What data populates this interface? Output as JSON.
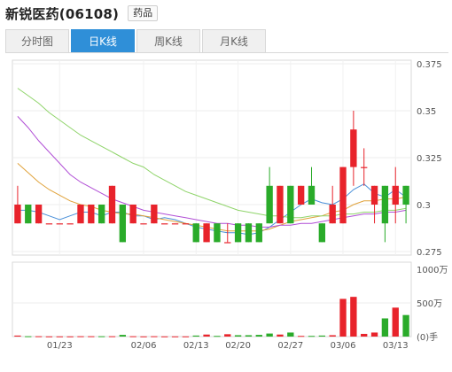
{
  "header": {
    "title": "新锐医药(06108)",
    "tag": "药品"
  },
  "tabs": [
    {
      "label": "分时图",
      "active": false
    },
    {
      "label": "日K线",
      "active": true
    },
    {
      "label": "周K线",
      "active": false
    },
    {
      "label": "月K线",
      "active": false
    }
  ],
  "colors": {
    "up": "#e8232b",
    "down": "#2aab2a",
    "accent": "#2f8fd8",
    "ma5": "#4a90d9",
    "ma10": "#e0a23a",
    "ma20": "#b14fd6",
    "ma30": "#8fd46a"
  },
  "chart_data": {
    "type": "candlestick",
    "price_axis": {
      "ticks": [
        "0.375",
        "0.35",
        "0.325",
        "0.3",
        "0.275"
      ],
      "ylim": [
        0.275,
        0.375
      ]
    },
    "volume_axis": {
      "ticks": [
        "1000万",
        "500万",
        "(0)手"
      ],
      "ylim": [
        0,
        1000
      ]
    },
    "x_labels": [
      {
        "label": "01/23",
        "index": 4
      },
      {
        "label": "02/06",
        "index": 12
      },
      {
        "label": "02/13",
        "index": 17
      },
      {
        "label": "02/20",
        "index": 21
      },
      {
        "label": "02/27",
        "index": 26
      },
      {
        "label": "03/06",
        "index": 31
      },
      {
        "label": "03/13",
        "index": 36
      }
    ],
    "candles": [
      {
        "open": 0.29,
        "close": 0.3,
        "high": 0.31,
        "low": 0.29,
        "volume": 15
      },
      {
        "open": 0.3,
        "close": 0.29,
        "high": 0.3,
        "low": 0.29,
        "volume": 5
      },
      {
        "open": 0.29,
        "close": 0.3,
        "high": 0.3,
        "low": 0.29,
        "volume": 5
      },
      {
        "open": 0.29,
        "close": 0.29,
        "high": 0.29,
        "low": 0.29,
        "volume": 3
      },
      {
        "open": 0.29,
        "close": 0.29,
        "high": 0.29,
        "low": 0.29,
        "volume": 3
      },
      {
        "open": 0.29,
        "close": 0.29,
        "high": 0.29,
        "low": 0.29,
        "volume": 3
      },
      {
        "open": 0.29,
        "close": 0.3,
        "high": 0.3,
        "low": 0.29,
        "volume": 5
      },
      {
        "open": 0.29,
        "close": 0.3,
        "high": 0.3,
        "low": 0.29,
        "volume": 5
      },
      {
        "open": 0.3,
        "close": 0.29,
        "high": 0.3,
        "low": 0.29,
        "volume": 5
      },
      {
        "open": 0.29,
        "close": 0.31,
        "high": 0.31,
        "low": 0.29,
        "volume": 5
      },
      {
        "open": 0.3,
        "close": 0.28,
        "high": 0.3,
        "low": 0.28,
        "volume": 25
      },
      {
        "open": 0.29,
        "close": 0.3,
        "high": 0.3,
        "low": 0.29,
        "volume": 5
      },
      {
        "open": 0.29,
        "close": 0.29,
        "high": 0.29,
        "low": 0.29,
        "volume": 3
      },
      {
        "open": 0.29,
        "close": 0.3,
        "high": 0.3,
        "low": 0.29,
        "volume": 5
      },
      {
        "open": 0.29,
        "close": 0.29,
        "high": 0.29,
        "low": 0.29,
        "volume": 3
      },
      {
        "open": 0.29,
        "close": 0.29,
        "high": 0.29,
        "low": 0.29,
        "volume": 3
      },
      {
        "open": 0.29,
        "close": 0.29,
        "high": 0.29,
        "low": 0.29,
        "volume": 3
      },
      {
        "open": 0.29,
        "close": 0.28,
        "high": 0.29,
        "low": 0.28,
        "volume": 15
      },
      {
        "open": 0.28,
        "close": 0.29,
        "high": 0.29,
        "low": 0.28,
        "volume": 30
      },
      {
        "open": 0.29,
        "close": 0.28,
        "high": 0.29,
        "low": 0.28,
        "volume": 10
      },
      {
        "open": 0.28,
        "close": 0.28,
        "high": 0.29,
        "low": 0.28,
        "volume": 35
      },
      {
        "open": 0.29,
        "close": 0.28,
        "high": 0.29,
        "low": 0.28,
        "volume": 20
      },
      {
        "open": 0.29,
        "close": 0.28,
        "high": 0.29,
        "low": 0.28,
        "volume": 20
      },
      {
        "open": 0.29,
        "close": 0.28,
        "high": 0.29,
        "low": 0.28,
        "volume": 25
      },
      {
        "open": 0.31,
        "close": 0.29,
        "high": 0.32,
        "low": 0.29,
        "volume": 45
      },
      {
        "open": 0.29,
        "close": 0.31,
        "high": 0.31,
        "low": 0.29,
        "volume": 30
      },
      {
        "open": 0.31,
        "close": 0.29,
        "high": 0.31,
        "low": 0.29,
        "volume": 60
      },
      {
        "open": 0.3,
        "close": 0.31,
        "high": 0.31,
        "low": 0.3,
        "volume": 10
      },
      {
        "open": 0.31,
        "close": 0.3,
        "high": 0.32,
        "low": 0.3,
        "volume": 10
      },
      {
        "open": 0.29,
        "close": 0.28,
        "high": 0.29,
        "low": 0.28,
        "volume": 15
      },
      {
        "open": 0.29,
        "close": 0.3,
        "high": 0.31,
        "low": 0.29,
        "volume": 20
      },
      {
        "open": 0.29,
        "close": 0.32,
        "high": 0.32,
        "low": 0.29,
        "volume": 560
      },
      {
        "open": 0.32,
        "close": 0.34,
        "high": 0.35,
        "low": 0.31,
        "volume": 590
      },
      {
        "open": 0.32,
        "close": 0.32,
        "high": 0.33,
        "low": 0.31,
        "volume": 40
      },
      {
        "open": 0.3,
        "close": 0.31,
        "high": 0.31,
        "low": 0.29,
        "volume": 60
      },
      {
        "open": 0.31,
        "close": 0.29,
        "high": 0.31,
        "low": 0.28,
        "volume": 270
      },
      {
        "open": 0.3,
        "close": 0.31,
        "high": 0.32,
        "low": 0.29,
        "volume": 430
      },
      {
        "open": 0.31,
        "close": 0.3,
        "high": 0.31,
        "low": 0.29,
        "volume": 320
      }
    ],
    "ma_series": [
      {
        "key": "ma5",
        "values": [
          0.297,
          0.297,
          0.296,
          0.294,
          0.292,
          0.294,
          0.296,
          0.296,
          0.294,
          0.296,
          0.296,
          0.294,
          0.294,
          0.292,
          0.293,
          0.292,
          0.29,
          0.288,
          0.287,
          0.286,
          0.285,
          0.285,
          0.284,
          0.285,
          0.288,
          0.292,
          0.296,
          0.3,
          0.303,
          0.301,
          0.3,
          0.303,
          0.308,
          0.311,
          0.306,
          0.304,
          0.308,
          0.304
        ]
      },
      {
        "key": "ma10",
        "values": [
          0.322,
          0.317,
          0.312,
          0.308,
          0.305,
          0.302,
          0.3,
          0.299,
          0.297,
          0.296,
          0.295,
          0.295,
          0.294,
          0.293,
          0.292,
          0.291,
          0.29,
          0.289,
          0.288,
          0.287,
          0.286,
          0.286,
          0.286,
          0.286,
          0.287,
          0.289,
          0.291,
          0.292,
          0.293,
          0.294,
          0.296,
          0.297,
          0.3,
          0.302,
          0.302,
          0.303,
          0.303,
          0.304
        ]
      },
      {
        "key": "ma20",
        "values": [
          0.347,
          0.341,
          0.334,
          0.328,
          0.322,
          0.316,
          0.312,
          0.309,
          0.306,
          0.303,
          0.301,
          0.299,
          0.297,
          0.296,
          0.295,
          0.294,
          0.293,
          0.292,
          0.291,
          0.29,
          0.29,
          0.289,
          0.289,
          0.288,
          0.288,
          0.289,
          0.289,
          0.29,
          0.29,
          0.291,
          0.292,
          0.293,
          0.294,
          0.295,
          0.295,
          0.296,
          0.296,
          0.297
        ]
      },
      {
        "key": "ma30",
        "values": [
          0.362,
          0.358,
          0.354,
          0.349,
          0.345,
          0.341,
          0.337,
          0.334,
          0.331,
          0.328,
          0.325,
          0.322,
          0.32,
          0.316,
          0.313,
          0.31,
          0.307,
          0.305,
          0.303,
          0.301,
          0.299,
          0.297,
          0.296,
          0.295,
          0.294,
          0.294,
          0.293,
          0.293,
          0.294,
          0.294,
          0.294,
          0.295,
          0.295,
          0.296,
          0.296,
          0.297,
          0.297,
          0.298
        ]
      }
    ]
  }
}
